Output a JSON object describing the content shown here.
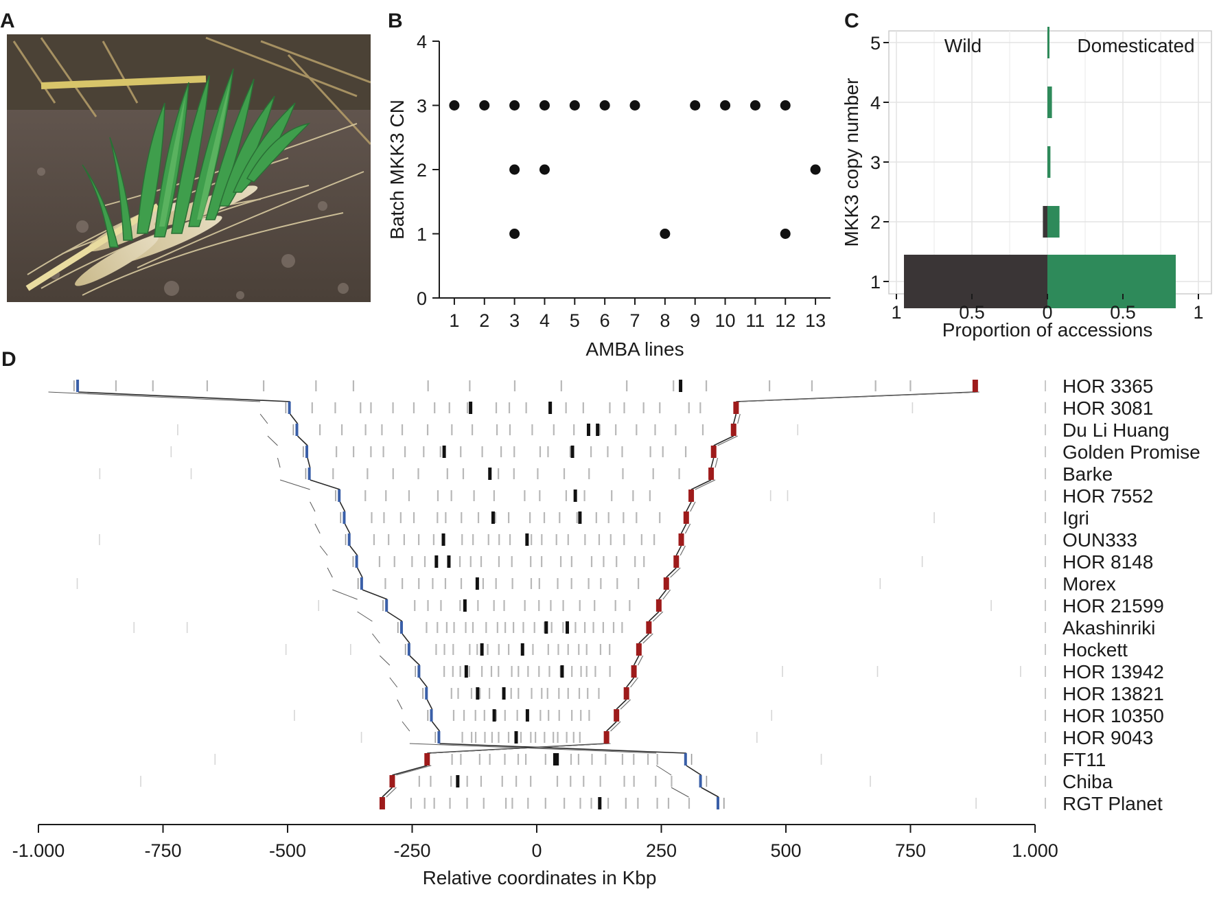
{
  "panel_letters": {
    "a": "A",
    "b": "B",
    "c": "C",
    "d": "D"
  },
  "photo": {
    "icon": "barley-spikes-photo"
  },
  "chart_data": [
    {
      "panel": "B",
      "type": "scatter",
      "title": "",
      "xlabel": "AMBA lines",
      "ylabel": "Batch MKK3 CN",
      "x_ticks": [
        "1",
        "2",
        "3",
        "4",
        "5",
        "6",
        "7",
        "8",
        "9",
        "10",
        "11",
        "12",
        "13"
      ],
      "y_ticks": [
        "0",
        "1",
        "2",
        "3",
        "4"
      ],
      "xlim": [
        0.5,
        13.5
      ],
      "ylim": [
        0,
        4
      ],
      "grid": false,
      "points": [
        {
          "x": 1,
          "y": 3
        },
        {
          "x": 2,
          "y": 3
        },
        {
          "x": 3,
          "y": 3
        },
        {
          "x": 3,
          "y": 2
        },
        {
          "x": 3,
          "y": 1
        },
        {
          "x": 4,
          "y": 3
        },
        {
          "x": 4,
          "y": 2
        },
        {
          "x": 5,
          "y": 3
        },
        {
          "x": 6,
          "y": 3
        },
        {
          "x": 7,
          "y": 3
        },
        {
          "x": 8,
          "y": 1
        },
        {
          "x": 9,
          "y": 3
        },
        {
          "x": 10,
          "y": 3
        },
        {
          "x": 11,
          "y": 3
        },
        {
          "x": 12,
          "y": 3
        },
        {
          "x": 12,
          "y": 1
        },
        {
          "x": 13,
          "y": 2
        }
      ]
    },
    {
      "panel": "C",
      "type": "bar",
      "orientation": "horizontal-diverging",
      "title": "",
      "xlabel": "Proportion of accessions",
      "ylabel": "MKK3 copy number",
      "x_ticks": [
        "1",
        "0.5",
        "0",
        "0.5",
        "1"
      ],
      "categories": [
        "1",
        "2",
        "3",
        "4",
        "5"
      ],
      "group_labels": {
        "left": "Wild",
        "right": "Domesticated"
      },
      "grid": true,
      "series": [
        {
          "name": "Wild",
          "color": "#3a3536",
          "values": [
            0.95,
            0.03,
            0.0,
            0.0,
            0.0
          ]
        },
        {
          "name": "Domesticated",
          "color": "#2e8a5a",
          "values": [
            0.85,
            0.08,
            0.02,
            0.03,
            0.01
          ]
        }
      ]
    },
    {
      "panel": "D",
      "type": "line",
      "title": "",
      "xlabel": "Relative coordinates in Kbp",
      "ylabel": "",
      "x_ticks": [
        "-1.000",
        "-750",
        "-500",
        "-250",
        "0",
        "250",
        "500",
        "750",
        "1.000"
      ],
      "xlim": [
        -1000,
        1000
      ],
      "grid": false,
      "colors": {
        "left_boundary": "#3a5fa8",
        "right_boundary": "#9e1b1b",
        "gene": "#111111",
        "flank": "#b8b8b8",
        "link": "#111111"
      },
      "accessions": [
        {
          "name": "HOR 3365",
          "left": -920,
          "right": 880
        },
        {
          "name": "HOR 3081",
          "left": -495,
          "right": 400
        },
        {
          "name": "Du Li Huang",
          "left": -480,
          "right": 395
        },
        {
          "name": "Golden Promise",
          "left": -460,
          "right": 355
        },
        {
          "name": "Barke",
          "left": -455,
          "right": 350
        },
        {
          "name": "HOR 7552",
          "left": -395,
          "right": 310
        },
        {
          "name": "Igri",
          "left": -385,
          "right": 300
        },
        {
          "name": "OUN333",
          "left": -375,
          "right": 290
        },
        {
          "name": "HOR 8148",
          "left": -360,
          "right": 280
        },
        {
          "name": "Morex",
          "left": -350,
          "right": 260
        },
        {
          "name": "HOR 21599",
          "left": -300,
          "right": 245
        },
        {
          "name": "Akashinriki",
          "left": -270,
          "right": 225
        },
        {
          "name": "Hockett",
          "left": -255,
          "right": 205
        },
        {
          "name": "HOR 13942",
          "left": -235,
          "right": 195
        },
        {
          "name": "HOR 13821",
          "left": -220,
          "right": 180
        },
        {
          "name": "HOR 10350",
          "left": -210,
          "right": 160
        },
        {
          "name": "HOR 9043",
          "left": -195,
          "right": 140
        },
        {
          "name": "FT11",
          "left": 300,
          "right": -220
        },
        {
          "name": "Chiba",
          "left": 330,
          "right": -290
        },
        {
          "name": "RGT Planet",
          "left": 365,
          "right": -310
        }
      ]
    }
  ]
}
